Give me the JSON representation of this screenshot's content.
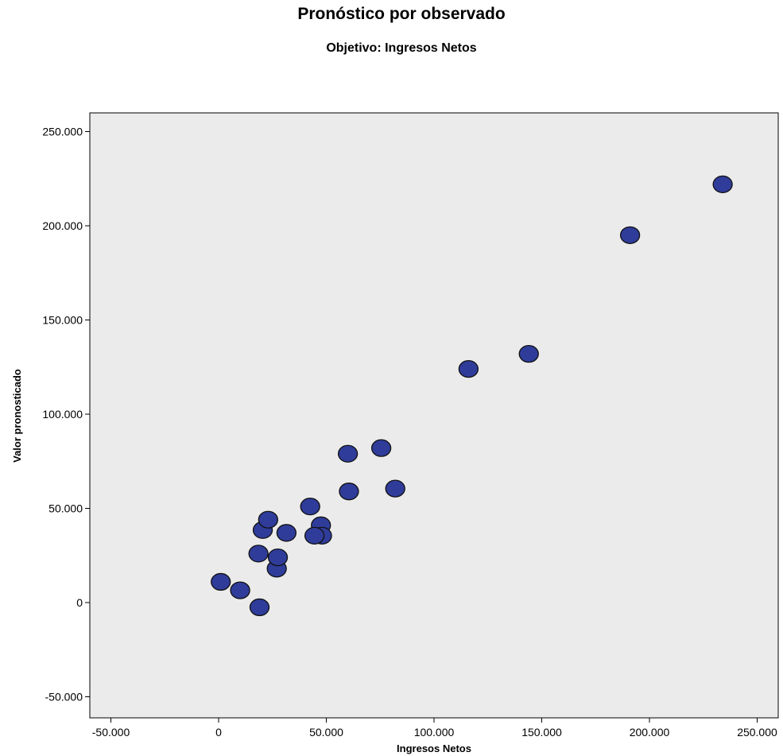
{
  "chart_data": {
    "type": "scatter",
    "title": "Pronóstico por observado",
    "subtitle": "Objetivo: Ingresos Netos",
    "xlabel": "Ingresos Netos",
    "ylabel": "Valor pronosticado",
    "xlim": [
      -60000,
      260000
    ],
    "ylim": [
      -55000,
      260000
    ],
    "x_ticks": [
      -50000,
      0,
      50000,
      100000,
      150000,
      200000,
      250000
    ],
    "x_tick_labels": [
      "-50.000",
      "0",
      "50.000",
      "100.000",
      "150.000",
      "200.000",
      "250.000"
    ],
    "y_ticks": [
      -50000,
      0,
      50000,
      100000,
      150000,
      200000,
      250000
    ],
    "y_tick_labels": [
      "-50.000",
      "0",
      "50.000",
      "100.000",
      "150.000",
      "200.000",
      "250.000"
    ],
    "grid": false,
    "colors": {
      "plot_background": "#ebebeb",
      "marker_fill": "#2f3c99",
      "marker_edge": "#111111"
    },
    "points": [
      {
        "x": 1000,
        "y": 11000
      },
      {
        "x": 10000,
        "y": 6500
      },
      {
        "x": 19000,
        "y": -2500
      },
      {
        "x": 18500,
        "y": 26000
      },
      {
        "x": 20500,
        "y": 38500
      },
      {
        "x": 23000,
        "y": 44000
      },
      {
        "x": 27000,
        "y": 18000
      },
      {
        "x": 27500,
        "y": 24000
      },
      {
        "x": 31500,
        "y": 37000
      },
      {
        "x": 42500,
        "y": 51000
      },
      {
        "x": 47500,
        "y": 41000
      },
      {
        "x": 48000,
        "y": 35500
      },
      {
        "x": 44500,
        "y": 35500
      },
      {
        "x": 60000,
        "y": 79000
      },
      {
        "x": 60500,
        "y": 59000
      },
      {
        "x": 75500,
        "y": 82000
      },
      {
        "x": 82000,
        "y": 60500
      },
      {
        "x": 116000,
        "y": 124000
      },
      {
        "x": 144000,
        "y": 132000
      },
      {
        "x": 191000,
        "y": 195000
      },
      {
        "x": 234000,
        "y": 222000
      }
    ]
  }
}
